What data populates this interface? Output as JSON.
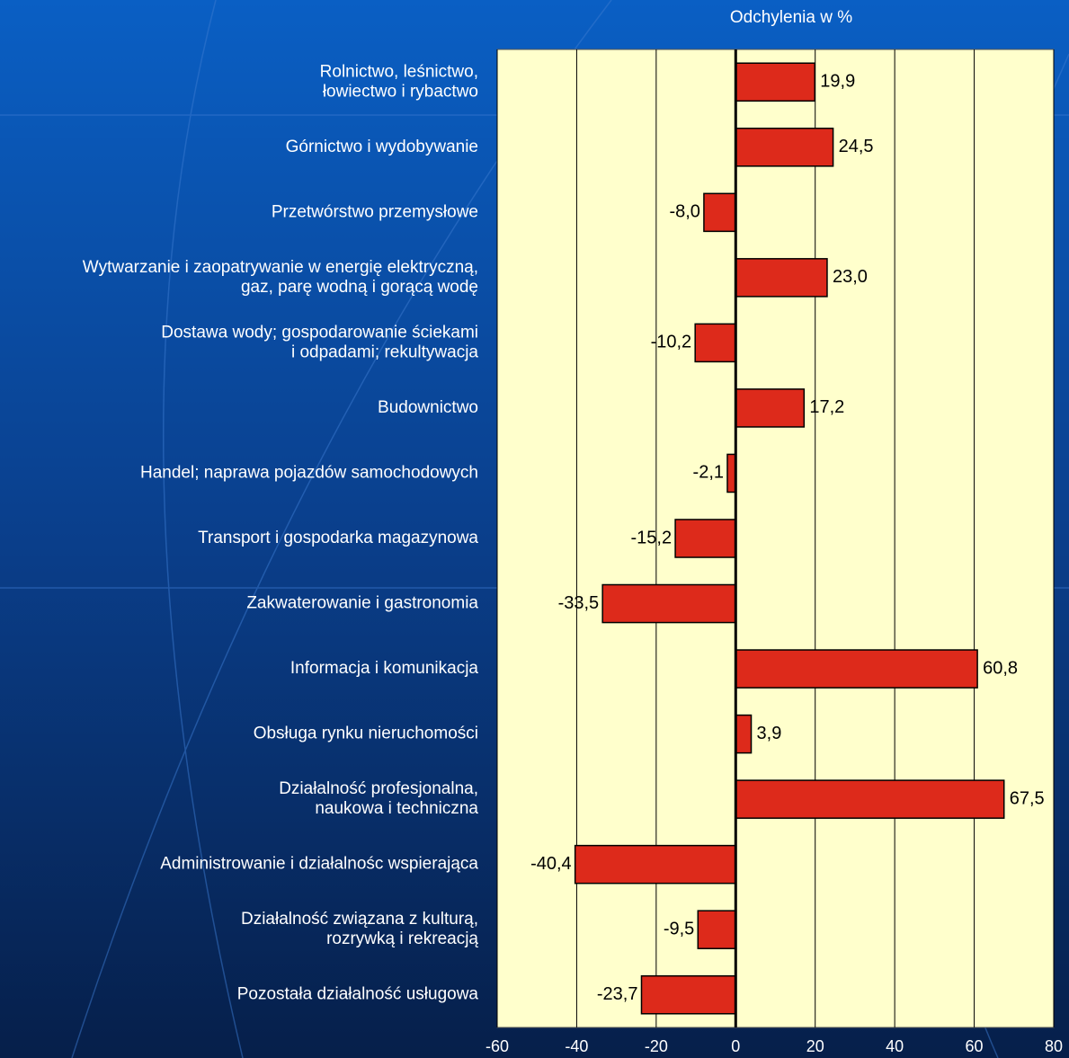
{
  "chart_data": {
    "type": "bar",
    "orientation": "horizontal",
    "title": "Odchylenia w %",
    "categories": [
      "Rolnictwo, leśnictwo,\nłowiectwo i rybactwo",
      "Górnictwo i wydobywanie",
      "Przetwórstwo przemysłowe",
      "Wytwarzanie i zaopatrywanie w energię elektryczną,\ngaz, parę wodną i gorącą wodę",
      "Dostawa wody; gospodarowanie ściekami\ni odpadami; rekultywacja",
      "Budownictwo",
      "Handel; naprawa pojazdów samochodowych",
      "Transport i gospodarka magazynowa",
      "Zakwaterowanie i gastronomia",
      "Informacja i komunikacja",
      "Obsługa rynku nieruchomości",
      "Działalność profesjonalna,\nnaukowa i techniczna",
      "Administrowanie i działalnośc wspierająca",
      "Działalność związana z kulturą,\nrozrywką i rekreacją",
      "Pozostała działalność usługowa"
    ],
    "values": [
      19.9,
      24.5,
      -8.0,
      23.0,
      -10.2,
      17.2,
      -2.1,
      -15.2,
      -33.5,
      60.8,
      3.9,
      67.5,
      -40.4,
      -9.5,
      -23.7
    ],
    "value_labels": [
      "19,9",
      "24,5",
      "-8,0",
      "23,0",
      "-10,2",
      "17,2",
      "-2,1",
      "-15,2",
      "-33,5",
      "60,8",
      "3,9",
      "67,5",
      "-40,4",
      "-9,5",
      "-23,7"
    ],
    "color": "#dd2a1b",
    "xlim": [
      -60,
      80
    ],
    "xticks": [
      -60,
      -40,
      -20,
      0,
      20,
      40,
      60,
      80
    ],
    "grid": true
  }
}
